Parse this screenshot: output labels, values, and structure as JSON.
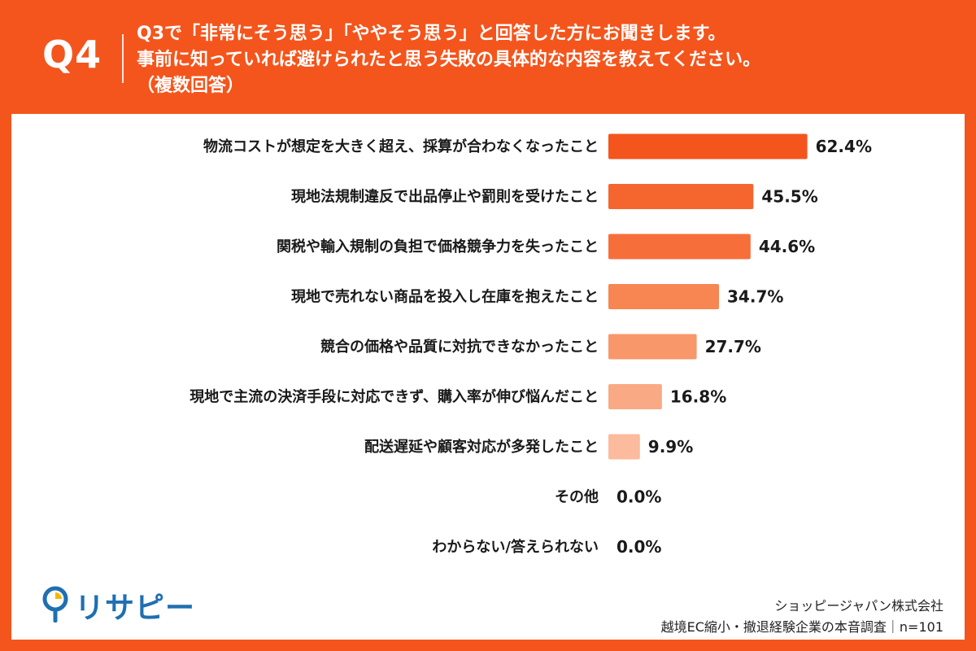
{
  "header": {
    "qnum": "Q4",
    "line1": "Q3で「非常にそう思う」「ややそう思う」と回答した方にお聞きします。",
    "line2": "事前に知っていれば避けられたと思う失敗の具体的な内容を教えてください。",
    "line3": "（複数回答）"
  },
  "colors": {
    "brand_orange": "#F4551C",
    "logo_blue": "#1F6FB2",
    "logo_yellow": "#F5B800"
  },
  "chart_data": {
    "type": "bar",
    "orientation": "horizontal",
    "categories": [
      "物流コストが想定を大きく超え、採算が合わなくなったこと",
      "現地法規制違反で出品停止や罰則を受けたこと",
      "関税や輸入規制の負担で価格競争力を失ったこと",
      "現地で売れない商品を投入し在庫を抱えたこと",
      "競合の価格や品質に対抗できなかったこと",
      "現地で主流の決済手段に対応できず、購入率が伸び悩んだこと",
      "配送遅延や顧客対応が多発したこと",
      "その他",
      "わからない/答えられない"
    ],
    "values": [
      62.4,
      45.5,
      44.6,
      34.7,
      27.7,
      16.8,
      9.9,
      0.0,
      0.0
    ],
    "value_labels": [
      "62.4%",
      "45.5%",
      "44.6%",
      "34.7%",
      "27.7%",
      "16.8%",
      "9.9%",
      "0.0%",
      "0.0%"
    ],
    "bar_colors": [
      "#F4551C",
      "#F5662E",
      "#F66F3B",
      "#F78652",
      "#F8976A",
      "#F9AA85",
      "#FBBB9C",
      "#FCCDB6",
      "#FCCDB6"
    ],
    "xlim": [
      0,
      100
    ]
  },
  "footer": {
    "logo_text": "リサピー",
    "company": "ショッピージャパン株式会社",
    "survey": "越境EC縮小・撤退経験企業の本音調査｜n=101"
  }
}
